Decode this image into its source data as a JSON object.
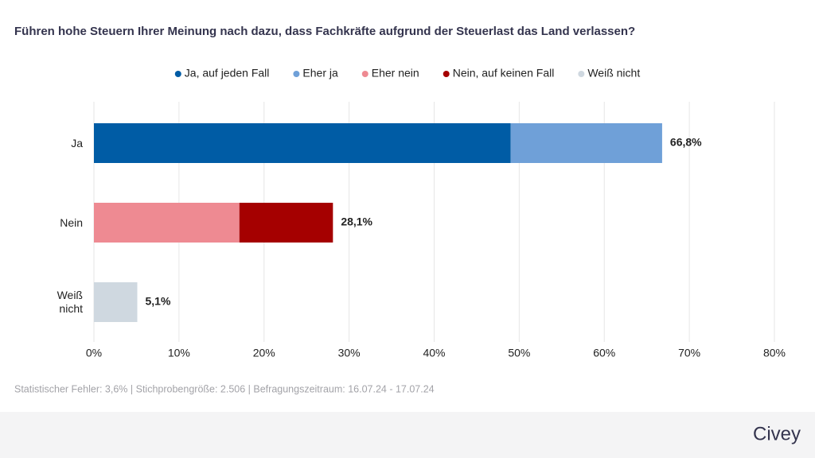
{
  "chart_data": {
    "type": "stacked-bar-horizontal",
    "title": "Führen hohe Steuern Ihrer Meinung nach dazu, dass Fachkräfte aufgrund der Steuerlast das Land verlassen?",
    "categories": [
      "Ja",
      "Nein",
      "Weiß nicht"
    ],
    "series": [
      {
        "name": "Ja, auf jeden Fall",
        "color": "#005ca5",
        "values": [
          49.0,
          null,
          null
        ]
      },
      {
        "name": "Eher ja",
        "color": "#6fa0d8",
        "values": [
          17.8,
          null,
          null
        ]
      },
      {
        "name": "Eher nein",
        "color": "#ee8a92",
        "values": [
          null,
          17.1,
          null
        ]
      },
      {
        "name": "Nein, auf keinen Fall",
        "color": "#a50000",
        "values": [
          null,
          11.0,
          null
        ]
      },
      {
        "name": "Weiß nicht",
        "color": "#cfd8e0",
        "values": [
          null,
          null,
          5.1
        ]
      }
    ],
    "totals": [
      66.8,
      28.1,
      5.1
    ],
    "total_labels": [
      "66,8%",
      "28,1%",
      "5,1%"
    ],
    "xlim": [
      0,
      80
    ],
    "xticks": [
      {
        "value": 0,
        "label": "0%"
      },
      {
        "value": 10,
        "label": "10%"
      },
      {
        "value": 20,
        "label": "20%"
      },
      {
        "value": 30,
        "label": "30%"
      },
      {
        "value": 40,
        "label": "40%"
      },
      {
        "value": 50,
        "label": "50%"
      },
      {
        "value": 60,
        "label": "60%"
      },
      {
        "value": 70,
        "label": "70%"
      },
      {
        "value": 80,
        "label": "80%"
      }
    ],
    "grid": true,
    "footnote": "Statistischer Fehler: 3,6% | Stichprobengröße: 2.506 | Befragungszeitraum: 16.07.24 - 17.07.24",
    "brand": "Civey"
  }
}
